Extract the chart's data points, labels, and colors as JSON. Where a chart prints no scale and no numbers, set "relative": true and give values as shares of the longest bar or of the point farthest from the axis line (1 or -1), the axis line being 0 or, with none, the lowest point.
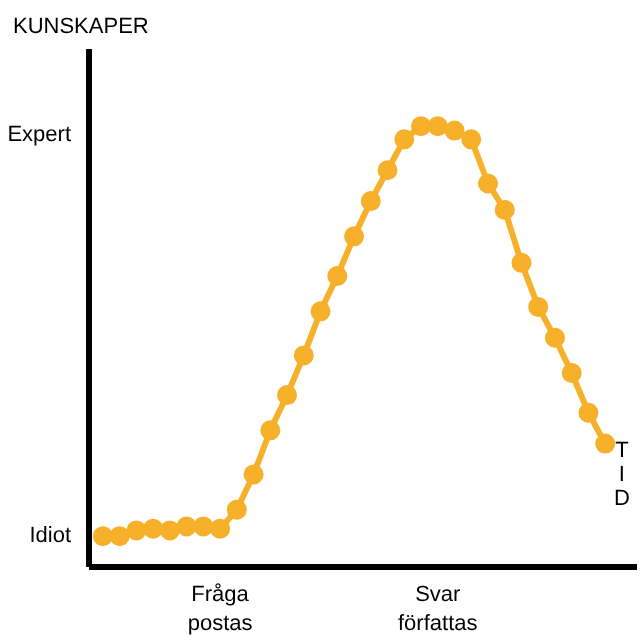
{
  "chart_data": {
    "type": "line",
    "relative": true,
    "ylabel": "KUNSKAPER",
    "xlabel": "TID",
    "marker": "circle",
    "grid": false,
    "categories": [
      null,
      null,
      null,
      null,
      null,
      null,
      null,
      "Fråga\npostas",
      null,
      null,
      null,
      null,
      null,
      null,
      null,
      null,
      null,
      null,
      null,
      null,
      "Svar\nförfattas",
      null,
      null,
      null,
      null,
      null,
      null,
      null,
      null,
      null,
      null
    ],
    "series": [
      {
        "color": "#f7b02a",
        "values": [
          0.07,
          0.07,
          0.083,
          0.087,
          0.083,
          0.092,
          0.092,
          0.087,
          0.13,
          0.21,
          0.31,
          0.39,
          0.48,
          0.58,
          0.66,
          0.75,
          0.83,
          0.9,
          0.97,
          1.0,
          1.0,
          0.99,
          0.97,
          0.87,
          0.81,
          0.69,
          0.59,
          0.52,
          0.44,
          0.35,
          0.28
        ]
      }
    ],
    "annotations": [
      "Expert",
      "Idiot"
    ]
  }
}
